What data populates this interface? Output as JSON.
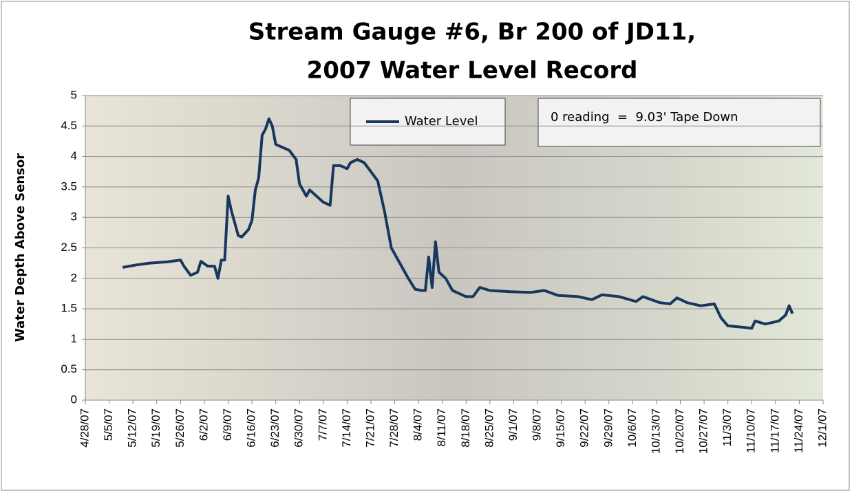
{
  "chart_data": {
    "type": "line",
    "title": [
      "Stream Gauge #6, Br 200 of JD11,",
      "2007 Water Level Record"
    ],
    "y_label": "Water Depth Above Sensor",
    "annotation": "0 reading  =  9.03' Tape Down",
    "x": [
      "2007-05-09",
      "2007-05-13",
      "2007-05-17",
      "2007-05-22",
      "2007-05-26",
      "2007-05-27",
      "2007-05-29",
      "2007-05-31",
      "2007-06-01",
      "2007-06-03",
      "2007-06-05",
      "2007-06-06",
      "2007-06-07",
      "2007-06-08",
      "2007-06-09",
      "2007-06-10",
      "2007-06-12",
      "2007-06-13",
      "2007-06-15",
      "2007-06-16",
      "2007-06-17",
      "2007-06-18",
      "2007-06-19",
      "2007-06-20",
      "2007-06-21",
      "2007-06-22",
      "2007-06-23",
      "2007-06-25",
      "2007-06-27",
      "2007-06-29",
      "2007-06-30",
      "2007-07-02",
      "2007-07-03",
      "2007-07-05",
      "2007-07-07",
      "2007-07-09",
      "2007-07-10",
      "2007-07-12",
      "2007-07-14",
      "2007-07-15",
      "2007-07-17",
      "2007-07-19",
      "2007-07-21",
      "2007-07-23",
      "2007-07-25",
      "2007-07-27",
      "2007-07-30",
      "2007-08-01",
      "2007-08-03",
      "2007-08-05",
      "2007-08-06",
      "2007-08-07",
      "2007-08-08",
      "2007-08-09",
      "2007-08-10",
      "2007-08-12",
      "2007-08-14",
      "2007-08-18",
      "2007-08-20",
      "2007-08-22",
      "2007-08-25",
      "2007-08-31",
      "2007-09-06",
      "2007-09-10",
      "2007-09-14",
      "2007-09-20",
      "2007-09-24",
      "2007-09-27",
      "2007-10-02",
      "2007-10-07",
      "2007-10-09",
      "2007-10-14",
      "2007-10-17",
      "2007-10-19",
      "2007-10-22",
      "2007-10-26",
      "2007-10-30",
      "2007-11-01",
      "2007-11-03",
      "2007-11-07",
      "2007-11-10",
      "2007-11-11",
      "2007-11-14",
      "2007-11-18",
      "2007-11-20",
      "2007-11-21",
      "2007-11-22"
    ],
    "series": [
      {
        "name": "Water Level",
        "color": "#17375e",
        "values": [
          2.18,
          2.22,
          2.25,
          2.27,
          2.3,
          2.2,
          2.05,
          2.1,
          2.28,
          2.2,
          2.2,
          2.0,
          2.3,
          2.3,
          3.35,
          3.1,
          2.7,
          2.68,
          2.8,
          2.95,
          3.45,
          3.65,
          4.35,
          4.45,
          4.62,
          4.5,
          4.2,
          4.15,
          4.1,
          3.95,
          3.55,
          3.35,
          3.45,
          3.35,
          3.25,
          3.2,
          3.85,
          3.85,
          3.8,
          3.9,
          3.95,
          3.9,
          3.75,
          3.6,
          3.1,
          2.5,
          2.2,
          2.0,
          1.82,
          1.8,
          1.8,
          2.35,
          1.85,
          2.6,
          2.1,
          2.0,
          1.8,
          1.7,
          1.7,
          1.85,
          1.8,
          1.78,
          1.77,
          1.8,
          1.72,
          1.7,
          1.65,
          1.73,
          1.7,
          1.62,
          1.7,
          1.6,
          1.58,
          1.68,
          1.6,
          1.55,
          1.58,
          1.35,
          1.22,
          1.2,
          1.18,
          1.3,
          1.25,
          1.3,
          1.4,
          1.55,
          1.42
        ]
      }
    ],
    "xlim": [
      "2007-04-28",
      "2007-12-01"
    ],
    "xticks": [
      {
        "value": "2007-04-28",
        "label": "4/28/07"
      },
      {
        "value": "2007-05-05",
        "label": "5/5/07"
      },
      {
        "value": "2007-05-12",
        "label": "5/12/07"
      },
      {
        "value": "2007-05-19",
        "label": "5/19/07"
      },
      {
        "value": "2007-05-26",
        "label": "5/26/07"
      },
      {
        "value": "2007-06-02",
        "label": "6/2/07"
      },
      {
        "value": "2007-06-09",
        "label": "6/9/07"
      },
      {
        "value": "2007-06-16",
        "label": "6/16/07"
      },
      {
        "value": "2007-06-23",
        "label": "6/23/07"
      },
      {
        "value": "2007-06-30",
        "label": "6/30/07"
      },
      {
        "value": "2007-07-07",
        "label": "7/7/07"
      },
      {
        "value": "2007-07-14",
        "label": "7/14/07"
      },
      {
        "value": "2007-07-21",
        "label": "7/21/07"
      },
      {
        "value": "2007-07-28",
        "label": "7/28/07"
      },
      {
        "value": "2007-08-04",
        "label": "8/4/07"
      },
      {
        "value": "2007-08-11",
        "label": "8/11/07"
      },
      {
        "value": "2007-08-18",
        "label": "8/18/07"
      },
      {
        "value": "2007-08-25",
        "label": "8/25/07"
      },
      {
        "value": "2007-09-01",
        "label": "9/1/07"
      },
      {
        "value": "2007-09-08",
        "label": "9/8/07"
      },
      {
        "value": "2007-09-15",
        "label": "9/15/07"
      },
      {
        "value": "2007-09-22",
        "label": "9/22/07"
      },
      {
        "value": "2007-09-29",
        "label": "9/29/07"
      },
      {
        "value": "2007-10-06",
        "label": "10/6/07"
      },
      {
        "value": "2007-10-13",
        "label": "10/13/07"
      },
      {
        "value": "2007-10-20",
        "label": "10/20/07"
      },
      {
        "value": "2007-10-27",
        "label": "10/27/07"
      },
      {
        "value": "2007-11-03",
        "label": "11/3/07"
      },
      {
        "value": "2007-11-10",
        "label": "11/10/07"
      },
      {
        "value": "2007-11-17",
        "label": "11/17/07"
      },
      {
        "value": "2007-11-24",
        "label": "11/24/07"
      },
      {
        "value": "2007-12-01",
        "label": "12/1/07"
      }
    ],
    "ylim": [
      0,
      5
    ],
    "yticks": [
      0,
      0.5,
      1,
      1.5,
      2,
      2.5,
      3,
      3.5,
      4,
      4.5,
      5
    ],
    "grid": true
  }
}
